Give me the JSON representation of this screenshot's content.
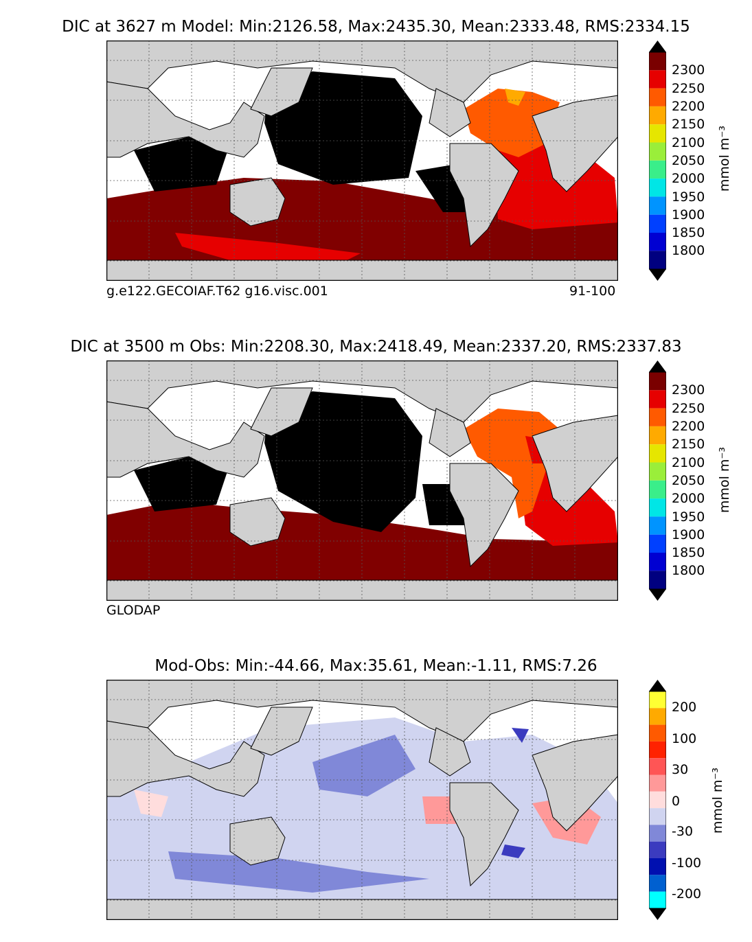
{
  "panels": [
    {
      "title": "DIC at 3627 m Model: Min:2126.58, Max:2435.30, Mean:2333.48, RMS:2334.15",
      "left_caption": "g.e122.GECOIAF.T62 g16.visc.001",
      "right_caption": "91-100",
      "colorbar_ticks": [
        "2300",
        "2250",
        "2200",
        "2150",
        "2100",
        "2050",
        "2000",
        "1950",
        "1900",
        "1850",
        "1800"
      ],
      "colorbar_colors": [
        "#7a0000",
        "#e60000",
        "#ff5a00",
        "#ffaa00",
        "#e6e600",
        "#9aee3a",
        "#3aee8a",
        "#00e6e6",
        "#0094ff",
        "#0040ff",
        "#0000d2",
        "#000080"
      ],
      "unit": "mmol m⁻³"
    },
    {
      "title": "DIC at 3500 m Obs: Min:2208.30, Max:2418.49, Mean:2337.20, RMS:2337.83",
      "left_caption": "GLODAP",
      "right_caption": "",
      "colorbar_ticks": [
        "2300",
        "2250",
        "2200",
        "2150",
        "2100",
        "2050",
        "2000",
        "1950",
        "1900",
        "1850",
        "1800"
      ],
      "colorbar_colors": [
        "#7a0000",
        "#e60000",
        "#ff5a00",
        "#ffaa00",
        "#e6e600",
        "#9aee3a",
        "#3aee8a",
        "#00e6e6",
        "#0094ff",
        "#0040ff",
        "#0000d2",
        "#000080"
      ],
      "unit": "mmol m⁻³"
    },
    {
      "title": "Mod-Obs: Min:-44.66, Max:35.61, Mean:-1.11, RMS:7.26",
      "left_caption": "",
      "right_caption": "",
      "colorbar_ticks": [
        "200",
        "100",
        "30",
        "0",
        "-30",
        "-100",
        "-200"
      ],
      "colorbar_colors": [
        "#ffff33",
        "#ffaa00",
        "#ff2200",
        "#ff5555",
        "#ff9999",
        "#ffdddd",
        "#d0d4f0",
        "#8088d8",
        "#3b3bbf",
        "#0010b0",
        "#0060d0",
        "#00b0e8",
        "#00ffff"
      ],
      "unit": "mmol m⁻³"
    }
  ],
  "colors": {
    "land": "#d0d0d0",
    "deep_black": "#000000",
    "dark_red": "#800000"
  }
}
